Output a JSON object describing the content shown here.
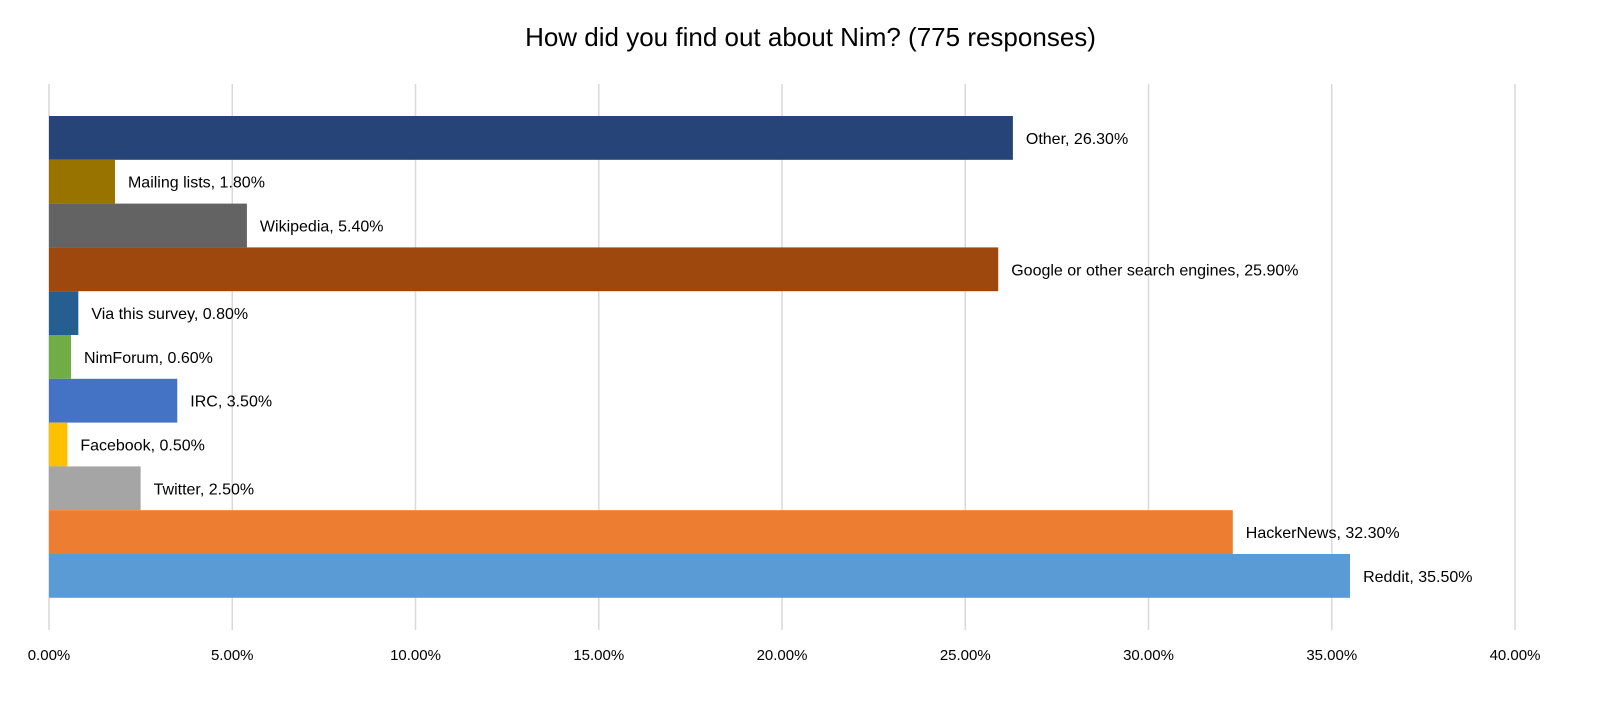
{
  "chart_data": {
    "type": "bar",
    "orientation": "horizontal",
    "title": "How did you find out about Nim? (775 responses)",
    "xlabel": "",
    "ylabel": "",
    "xlim": [
      0,
      40
    ],
    "x_tick_labels": [
      "0.00%",
      "5.00%",
      "10.00%",
      "15.00%",
      "20.00%",
      "25.00%",
      "30.00%",
      "35.00%",
      "40.00%"
    ],
    "grid": "vertical",
    "legend": "none",
    "categories": [
      "Other",
      "Mailing lists",
      "Wikipedia",
      "Google or other search engines",
      "Via this survey",
      "NimForum",
      "IRC",
      "Facebook",
      "Twitter",
      "HackerNews",
      "Reddit"
    ],
    "values": [
      26.3,
      1.8,
      5.4,
      25.9,
      0.8,
      0.6,
      3.5,
      0.5,
      2.5,
      32.3,
      35.5
    ],
    "data_labels": [
      "Other, 26.30%",
      "Mailing lists, 1.80%",
      "Wikipedia, 5.40%",
      "Google or other search engines, 25.90%",
      "Via this survey, 0.80%",
      "NimForum, 0.60%",
      "IRC, 3.50%",
      "Facebook, 0.50%",
      "Twitter, 2.50%",
      "HackerNews, 32.30%",
      "Reddit, 35.50%"
    ],
    "colors": [
      "#264478",
      "#997300",
      "#636363",
      "#9E480E",
      "#255E91",
      "#70AD47",
      "#4472C4",
      "#FFC000",
      "#A5A5A5",
      "#ED7D31",
      "#5B9BD5"
    ]
  }
}
